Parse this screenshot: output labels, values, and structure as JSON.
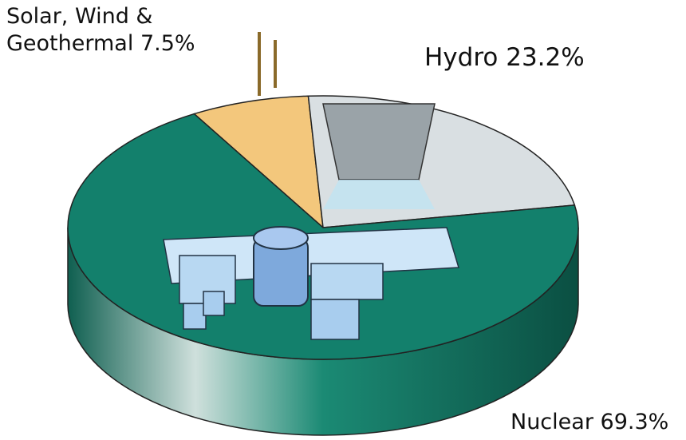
{
  "chart_data": {
    "type": "pie",
    "categories": [
      "Solar, Wind & Geothermal",
      "Hydro",
      "Nuclear"
    ],
    "values": [
      7.5,
      23.2,
      69.3
    ],
    "value_labels": [
      "7.5%",
      "23.2%",
      "69.3%"
    ],
    "colors": [
      "#f3c77c",
      "#d9dfe2",
      "#13806c"
    ]
  }
}
